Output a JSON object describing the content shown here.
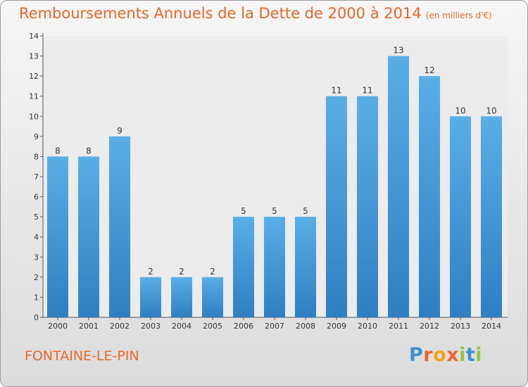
{
  "chart_data": {
    "type": "bar",
    "title": "Remboursements Annuels de la Dette de 2000 à 2014",
    "subtitle": "(en milliers d'€)",
    "categories": [
      "2000",
      "2001",
      "2002",
      "2003",
      "2004",
      "2005",
      "2006",
      "2007",
      "2008",
      "2009",
      "2010",
      "2011",
      "2012",
      "2013",
      "2014"
    ],
    "values": [
      8,
      8,
      9,
      2,
      2,
      2,
      5,
      5,
      5,
      11,
      11,
      13,
      12,
      10,
      10
    ],
    "ylim": [
      0,
      14
    ],
    "yticks": [
      0,
      1,
      2,
      3,
      4,
      5,
      6,
      7,
      8,
      9,
      10,
      11,
      12,
      13,
      14
    ],
    "grid": false,
    "xlabel": "",
    "ylabel": "",
    "bar_color_top": "#5aaee6",
    "bar_color_bottom": "#2e7fc1"
  },
  "footer": {
    "location": "FONTAINE-LE-PIN",
    "brand_letters": [
      "P",
      "r",
      "o",
      "x",
      "i",
      "t",
      "i"
    ],
    "brand_colors": [
      "#3f8fd2",
      "#e8662a",
      "#f2a31b",
      "#e8662a",
      "#8cc63f",
      "#3f8fd2",
      "#8cc63f"
    ]
  },
  "colors": {
    "accent": "#e8662a",
    "axis": "#555555"
  }
}
